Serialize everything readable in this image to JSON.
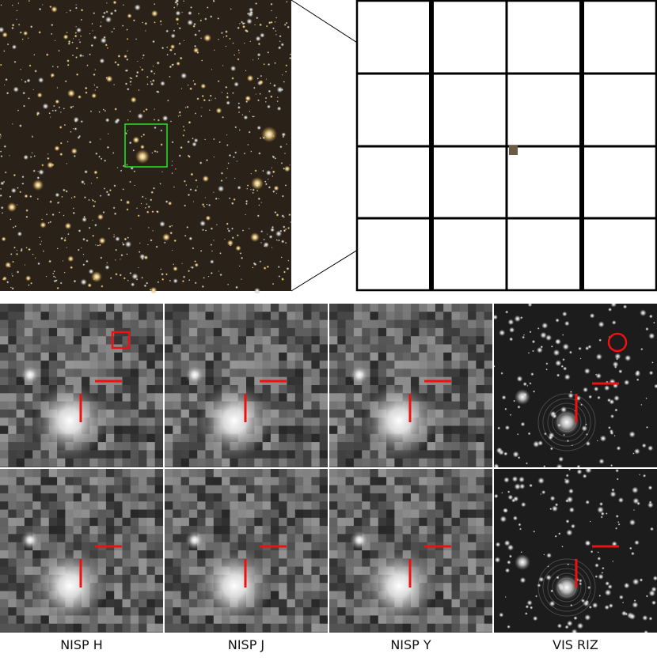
{
  "figure": {
    "overview": {
      "image": "star-field-color-image",
      "tile_grid": {
        "rows": 4,
        "cols": 4
      },
      "highlight_box_color": "#22dd22"
    },
    "panels": {
      "columns": [
        {
          "label": "NISP H",
          "kind": "pixelated"
        },
        {
          "label": "NISP J",
          "kind": "pixelated"
        },
        {
          "label": "NISP Y",
          "kind": "pixelated"
        },
        {
          "label": "VIS RIZ",
          "kind": "high-resolution"
        }
      ],
      "rows": 2,
      "marker_color": "#ee1111",
      "row1_target_markers": [
        "square-marker",
        "circle-marker"
      ]
    }
  }
}
